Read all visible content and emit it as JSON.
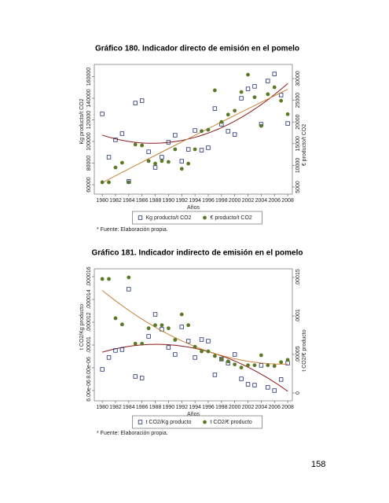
{
  "chart_data": [
    {
      "type": "scatter",
      "title": "Gráfico 180. Indicador directo de emisión en el pomelo",
      "x_label": "Años",
      "y_label": "Kg producto/t CO2",
      "y2_label": "€ producto/t CO2",
      "note": "* Fuente: Elaboración propia.",
      "x": [
        1980,
        1981,
        1982,
        1983,
        1984,
        1985,
        1986,
        1987,
        1988,
        1989,
        1990,
        1991,
        1992,
        1993,
        1994,
        1995,
        1996,
        1997,
        1998,
        1999,
        2000,
        2001,
        2002,
        2003,
        2004,
        2005,
        2006,
        2007,
        2008
      ],
      "series": [
        {
          "name": "Kg producto/t CO2",
          "color": "#1f2f6e",
          "marker": "square",
          "fit_color": "#8b1a1a",
          "values": [
            125500,
            85500,
            101500,
            107300,
            63000,
            135600,
            137800,
            90500,
            76000,
            85500,
            99300,
            105800,
            81800,
            92700,
            110200,
            92000,
            94200,
            130500,
            116000,
            109500,
            106500,
            140000,
            148700,
            151000,
            116000,
            156000,
            162500,
            143000,
            116700
          ]
        },
        {
          "name": "€ producto/t CO2",
          "color": "#5b7a26",
          "marker": "circle",
          "axis": "y2",
          "fit_color": "#c8843a",
          "values": [
            6100,
            6100,
            9500,
            10600,
            6100,
            14800,
            14600,
            11000,
            10400,
            11000,
            10800,
            13700,
            9200,
            10400,
            13700,
            17900,
            18200,
            27300,
            20000,
            21700,
            22600,
            26900,
            30900,
            25700,
            19100,
            26400,
            28000,
            24900,
            21800
          ]
        }
      ],
      "xlim": [
        1978.8,
        2008.7
      ],
      "xticks": [
        1980,
        1982,
        1984,
        1986,
        1988,
        1990,
        1992,
        1994,
        1996,
        1998,
        2000,
        2002,
        2004,
        2006,
        2008
      ],
      "ylim": [
        51300,
        171300
      ],
      "yticks": [
        60000,
        80000,
        100000,
        120000,
        140000,
        160000
      ],
      "y2lim": [
        3370,
        33260
      ],
      "y2ticks": [
        5000,
        10000,
        15000,
        20000,
        25000,
        30000
      ]
    },
    {
      "type": "scatter",
      "title": "Gráfico 181. Indicador indirecto de emisión en el pomelo",
      "x_label": "Años",
      "y_label": "t CO2/Kg producto",
      "y2_label": "t CO2/€ producto",
      "note": "* Fuente: Elaboración propia.",
      "x": [
        1980,
        1981,
        1982,
        1983,
        1984,
        1985,
        1986,
        1987,
        1988,
        1989,
        1990,
        1991,
        1992,
        1993,
        1994,
        1995,
        1996,
        1997,
        1998,
        1999,
        2000,
        2001,
        2002,
        2003,
        2004,
        2005,
        2006,
        2007,
        2008
      ],
      "series": [
        {
          "name": "t CO2/Kg producto",
          "color": "#1f2f6e",
          "marker": "square",
          "fit_color": "#8b1a1a",
          "values": [
            7.86e-06,
            8.9e-06,
            9.52e-06,
            9.59e-06,
            1.49e-05,
            7.24e-06,
            7.1e-06,
            1.076e-05,
            1.269e-05,
            1.138e-05,
            9.79e-06,
            9.17e-06,
            1.159e-05,
            1.034e-05,
            8.9e-06,
            1.048e-05,
            1.034e-05,
            7.38e-06,
            8.76e-06,
            8.41e-06,
            9.17e-06,
            7.03e-06,
            6.55e-06,
            6.48e-06,
            8.21e-06,
            6.28e-06,
            6e-06,
            6.97e-06,
            8.41e-06
          ]
        },
        {
          "name": "t CO2/€ producto",
          "color": "#5b7a26",
          "marker": "circle",
          "axis": "y2",
          "fit_color": "#c8843a",
          "values": [
            0.000148,
            0.000148,
            9.7e-05,
            8.9e-05,
            0.00015,
            6.4e-05,
            6.4e-05,
            8.4e-05,
            8.8e-05,
            8.8e-05,
            8.4e-05,
            6.9e-05,
            0.000102,
            8.8e-05,
            6e-05,
            5.4e-05,
            5.4e-05,
            4.8e-05,
            4.4e-05,
            4.1e-05,
            3.7e-05,
            3.3e-05,
            3.6e-05,
            3.6e-05,
            4.9e-05,
            3.6e-05,
            3.5e-05,
            4e-05,
            4.3e-05
          ]
        }
      ],
      "xlim": [
        1978.8,
        2008.7
      ],
      "xticks": [
        1980,
        1982,
        1984,
        1986,
        1988,
        1990,
        1992,
        1994,
        1996,
        1998,
        2000,
        2002,
        2004,
        2006,
        2008
      ],
      "ylim": [
        5.1e-06,
        1.669e-05
      ],
      "yticks": [
        {
          "value": 6e-06,
          "label": "6.00e-06"
        },
        {
          "value": 8e-06,
          "label": "8.00e-06"
        },
        {
          "value": 1e-05,
          "label": ".00001"
        },
        {
          "value": 1.2e-05,
          "label": ".000012"
        },
        {
          "value": 1.4e-05,
          "label": ".000014"
        },
        {
          "value": 1.6e-05,
          "label": ".000016"
        }
      ],
      "y2lim": [
        -1.02e-05,
        0.0001612
      ],
      "y2ticks": [
        0,
        {
          "value": 5e-05,
          "label": ".00005"
        },
        {
          "value": 0.0001,
          "label": ".0001"
        },
        {
          "value": 0.00015,
          "label": ".00015"
        }
      ]
    }
  ],
  "page_number": "158"
}
